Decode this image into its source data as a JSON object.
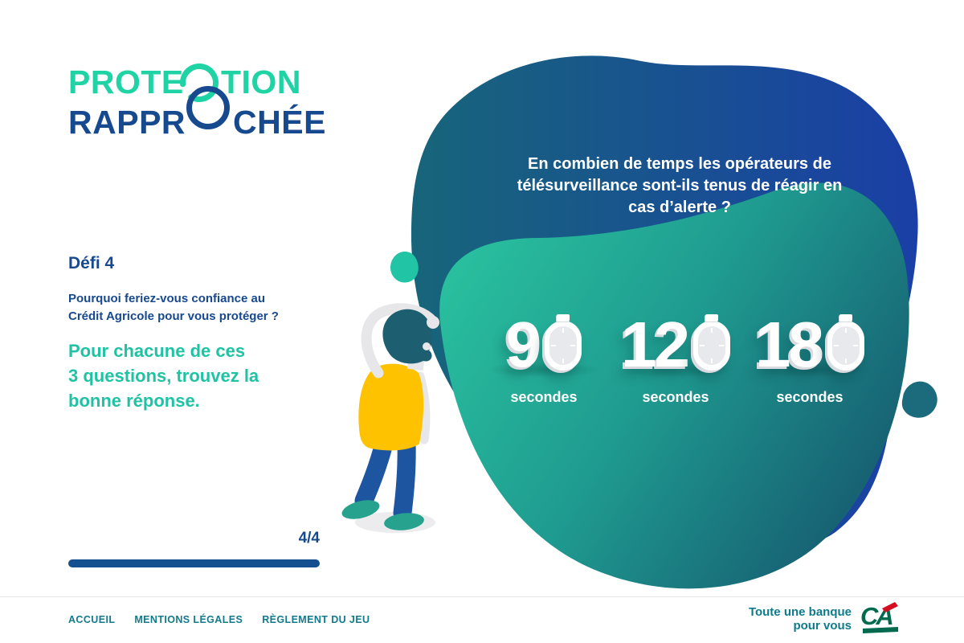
{
  "logo": {
    "line1_pre": "PROTE",
    "line1_post": "TION",
    "line2_pre": "RAPPR",
    "line2_post": "CHÉE"
  },
  "left_panel": {
    "challenge_label": "Défi 4",
    "question_intro": "Pourquoi feriez-vous confiance au Crédit Agricole pour vous protéger ?",
    "instruction_lines": [
      "Pour chacune de ces",
      "3 questions, trouvez la",
      "bonne réponse."
    ],
    "progress_label": "4/4",
    "progress_percent": 100
  },
  "quiz": {
    "question": "En combien de temps les opérateurs de télésurveillance sont-ils tenus de réagir en cas d’alerte ?",
    "answers": [
      {
        "value": "90",
        "display_digits": "9",
        "unit": "secondes"
      },
      {
        "value": "120",
        "display_digits": "12",
        "unit": "secondes"
      },
      {
        "value": "180",
        "display_digits": "18",
        "unit": "secondes"
      }
    ]
  },
  "footer": {
    "links": [
      {
        "label": "ACCUEIL"
      },
      {
        "label": "MENTIONS LÉGALES"
      },
      {
        "label": "RÈGLEMENT DU JEU"
      }
    ],
    "slogan_line1": "Toute une banque",
    "slogan_line2": "pour vous",
    "brand": "CA"
  },
  "colors": {
    "brand_teal": "#1FD3A5",
    "brand_blue": "#17498F",
    "accent_teal_text": "#1FC3A4",
    "progress_blue": "#14508F",
    "footer_link_teal": "#137A8B",
    "blob_blue_left": "#17657A",
    "blob_blue_right": "#1A3FA6",
    "blob_teal_light": "#2BC8A2",
    "blob_teal_dark": "#176374",
    "ca_green": "#006A4E",
    "ca_red": "#D50E22",
    "shirt_yellow": "#FFC200",
    "jeans_blue": "#1D55A0"
  }
}
